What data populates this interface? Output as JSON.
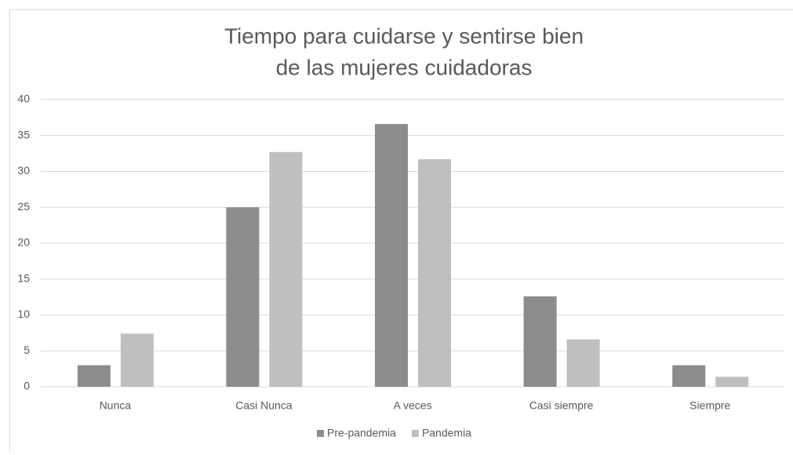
{
  "chart_data": {
    "type": "bar",
    "title": [
      "Tiempo para cuidarse y sentirse bien",
      "de las mujeres cuidadoras"
    ],
    "categories": [
      "Nunca",
      "Casi Nunca",
      "A veces",
      "Casi siempre",
      "Siempre"
    ],
    "series": [
      {
        "name": "Pre-pandemia",
        "color": "#8c8c8c",
        "values": [
          3,
          25,
          36.6,
          12.6,
          3
        ]
      },
      {
        "name": "Pandemia",
        "color": "#bfbfbf",
        "values": [
          7.4,
          32.7,
          31.7,
          6.6,
          1.4
        ]
      }
    ],
    "ylim": [
      0,
      40
    ],
    "yticks": [
      0,
      5,
      10,
      15,
      20,
      25,
      30,
      35,
      40
    ],
    "grid": true,
    "legend": "bottom"
  }
}
